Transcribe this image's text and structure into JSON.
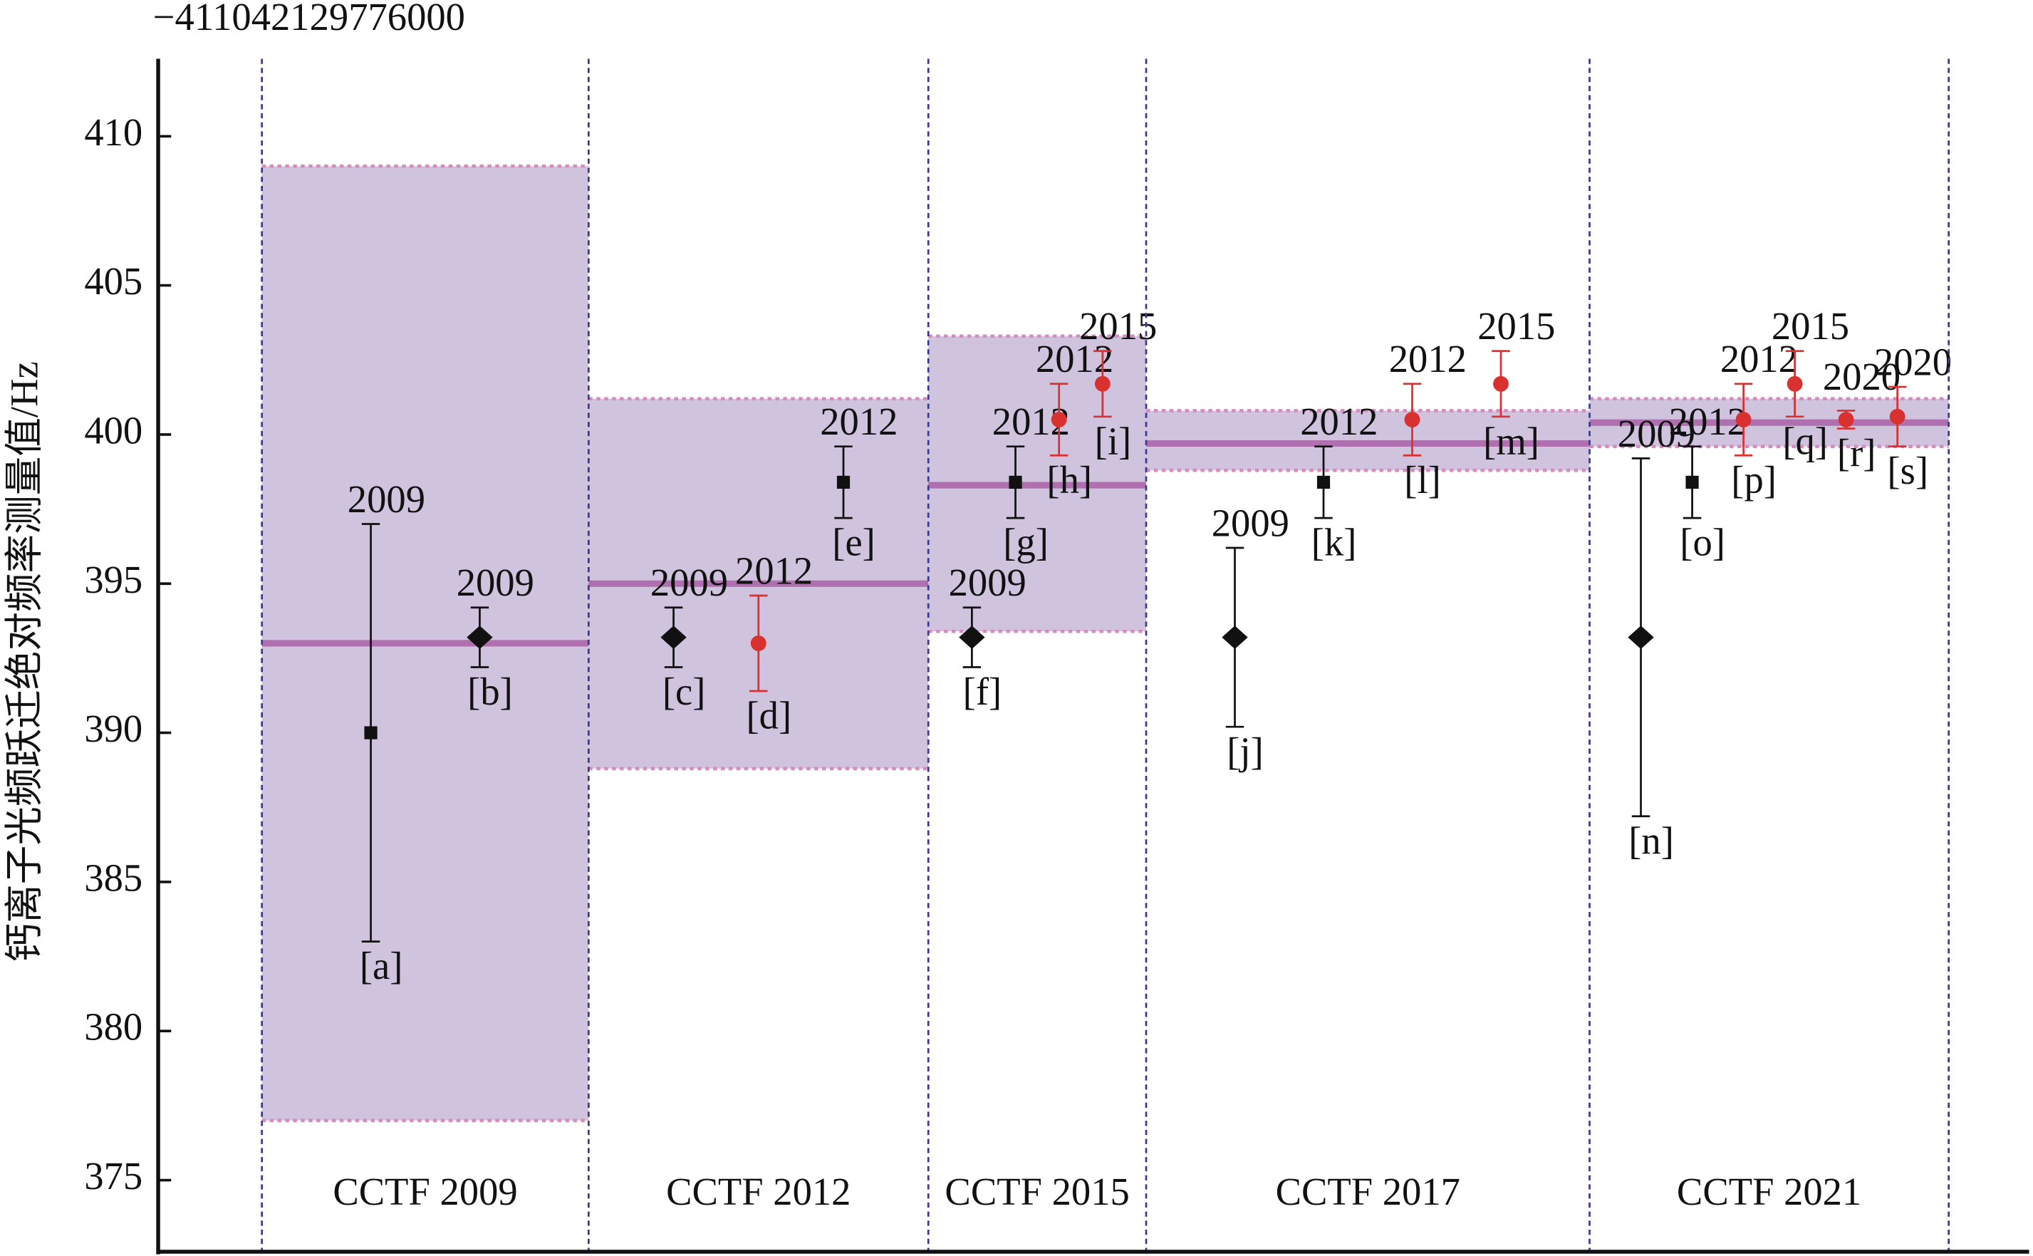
{
  "chart_data": {
    "type": "errorbar",
    "offset_label": "−411042129776000",
    "ylabel": "钙离子光频跃迁绝对频率测量值/Hz",
    "ylim": [
      372.6,
      412.6
    ],
    "yticks": [
      375,
      380,
      385,
      390,
      395,
      400,
      405,
      410
    ],
    "band_color": "#cfc3de",
    "band_edge_color": "#d58bbd",
    "center_color": "#b070b0",
    "panels": [
      {
        "label": "CCTF 2009",
        "center": 393,
        "low": 377,
        "high": 409,
        "points": [
          {
            "id": "[a]",
            "year": "2009",
            "value": 390,
            "error": 7,
            "marker": "square",
            "color": "#111111"
          },
          {
            "id": "[b]",
            "year": "2009",
            "value": 393.2,
            "error": 1,
            "marker": "diamond",
            "color": "#111111"
          }
        ]
      },
      {
        "label": "CCTF 2012",
        "center": 395,
        "low": 388.8,
        "high": 401.2,
        "points": [
          {
            "id": "[c]",
            "year": "2009",
            "value": 393.2,
            "error": 1,
            "marker": "diamond",
            "color": "#111111"
          },
          {
            "id": "[d]",
            "year": "2012",
            "value": 393,
            "error": 1.6,
            "marker": "circle",
            "color": "#d93030"
          },
          {
            "id": "[e]",
            "year": "2012",
            "value": 398.4,
            "error": 1.2,
            "marker": "square",
            "color": "#111111"
          }
        ]
      },
      {
        "label": "CCTF 2015",
        "center": 398.3,
        "low": 393.4,
        "high": 403.3,
        "points": [
          {
            "id": "[f]",
            "year": "2009",
            "value": 393.2,
            "error": 1,
            "marker": "diamond",
            "color": "#111111"
          },
          {
            "id": "[g]",
            "year": "2012",
            "value": 398.4,
            "error": 1.2,
            "marker": "square",
            "color": "#111111"
          },
          {
            "id": "[h]",
            "year": "2012",
            "value": 400.5,
            "error": 1.2,
            "marker": "circle",
            "color": "#d93030"
          },
          {
            "id": "[i]",
            "year": "2015",
            "value": 401.7,
            "error": 1.1,
            "marker": "circle",
            "color": "#d93030"
          }
        ]
      },
      {
        "label": "CCTF 2017",
        "center": 399.7,
        "low": 398.8,
        "high": 400.8,
        "points": [
          {
            "id": "[j]",
            "year": "2009",
            "value": 393.2,
            "error": 3,
            "marker": "diamond",
            "color": "#111111"
          },
          {
            "id": "[k]",
            "year": "2012",
            "value": 398.4,
            "error": 1.2,
            "marker": "square",
            "color": "#111111"
          },
          {
            "id": "[l]",
            "year": "2012",
            "value": 400.5,
            "error": 1.2,
            "marker": "circle",
            "color": "#d93030"
          },
          {
            "id": "[m]",
            "year": "2015",
            "value": 401.7,
            "error": 1.1,
            "marker": "circle",
            "color": "#d93030"
          }
        ]
      },
      {
        "label": "CCTF 2021",
        "center": 400.4,
        "low": 399.6,
        "high": 401.2,
        "points": [
          {
            "id": "[n]",
            "year": "2009",
            "value": 393.2,
            "error": 6,
            "marker": "diamond",
            "color": "#111111"
          },
          {
            "id": "[o]",
            "year": "2012",
            "value": 398.4,
            "error": 1.2,
            "marker": "square",
            "color": "#111111"
          },
          {
            "id": "[p]",
            "year": "2012",
            "value": 400.5,
            "error": 1.2,
            "marker": "circle",
            "color": "#d93030"
          },
          {
            "id": "[q]",
            "year": "2015",
            "value": 401.7,
            "error": 1.1,
            "marker": "circle",
            "color": "#d93030"
          },
          {
            "id": "[r]",
            "year": "2020",
            "value": 400.5,
            "error": 0.3,
            "marker": "circle",
            "color": "#d93030"
          },
          {
            "id": "[s]",
            "year": "2020",
            "value": 400.6,
            "error": 1,
            "marker": "circle",
            "color": "#d93030"
          }
        ]
      }
    ]
  }
}
